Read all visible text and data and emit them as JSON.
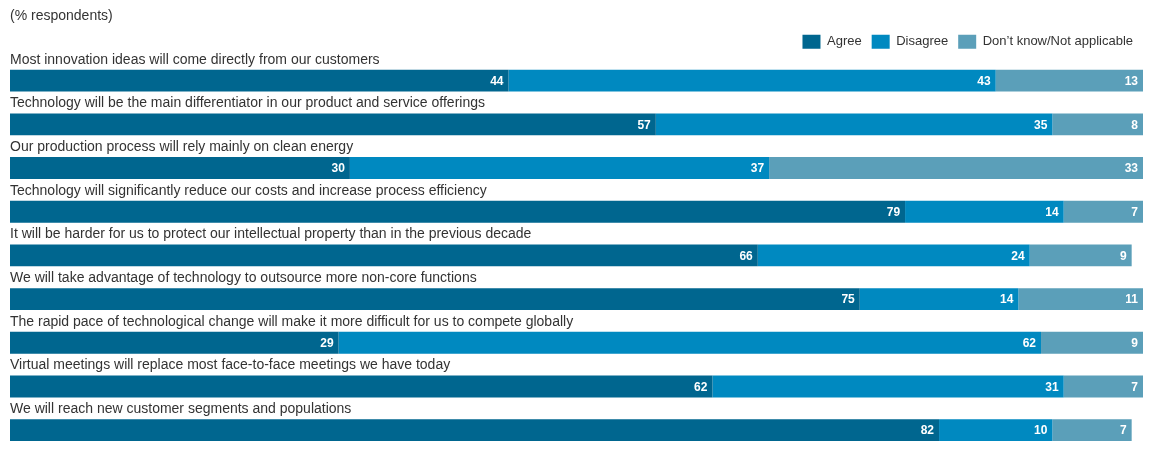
{
  "chart_data": {
    "type": "bar",
    "orientation": "horizontal",
    "stacked": true,
    "title": "(% respondents)",
    "legend": "top right",
    "data_labels": true,
    "categories": [
      "Most innovation ideas will come directly from our customers",
      "Technology will be the main differentiator in our product and service offerings",
      "Our production process will rely mainly on clean energy",
      "Technology will significantly reduce our costs and increase process efficiency",
      "It will be harder for us to protect our intellectual property than in the previous decade",
      "We will take advantage of technology to outsource more non-core functions",
      "The rapid pace of technological change will make it more difficult for us to compete globally",
      "Virtual meetings will replace most face-to-face meetings we have today",
      "We will reach new customer segments and populations"
    ],
    "series": [
      {
        "name": "Agree",
        "color": "#00668f",
        "values": [
          44,
          57,
          30,
          79,
          66,
          75,
          29,
          62,
          82
        ]
      },
      {
        "name": "Disagree",
        "color": "#0089c0",
        "values": [
          43,
          35,
          37,
          14,
          24,
          14,
          62,
          31,
          10
        ]
      },
      {
        "name": "Don’t know/Not applicable",
        "color": "#5b9fb9",
        "values": [
          13,
          8,
          33,
          7,
          9,
          11,
          9,
          7,
          7
        ]
      }
    ]
  }
}
